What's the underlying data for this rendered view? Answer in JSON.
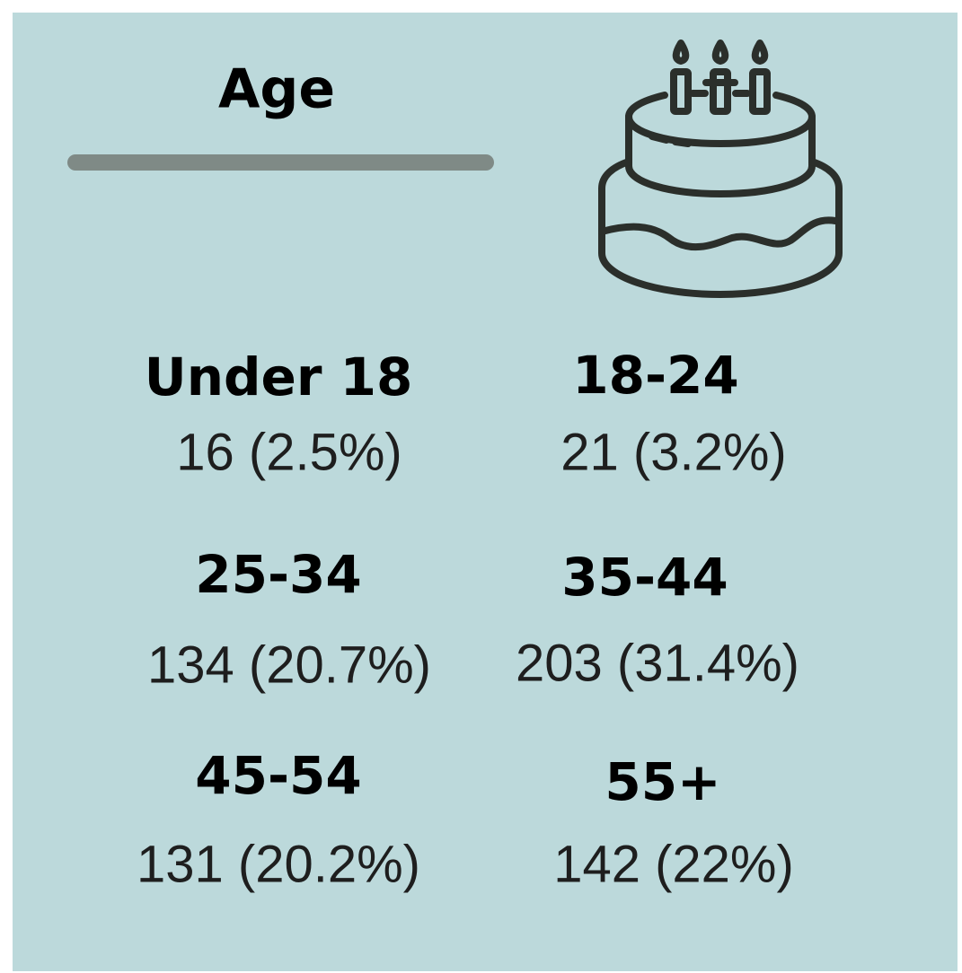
{
  "title": "Age",
  "groups": [
    {
      "label": "Under 18",
      "value": "16 (2.5%)"
    },
    {
      "label": "18-24",
      "value": "21 (3.2%)"
    },
    {
      "label": "25-34",
      "value": "134 (20.7%)"
    },
    {
      "label": "35-44",
      "value": "203 (31.4%)"
    },
    {
      "label": "45-54",
      "value": "131 (20.2%)"
    },
    {
      "label": "55+",
      "value": "142 (22%)"
    }
  ]
}
